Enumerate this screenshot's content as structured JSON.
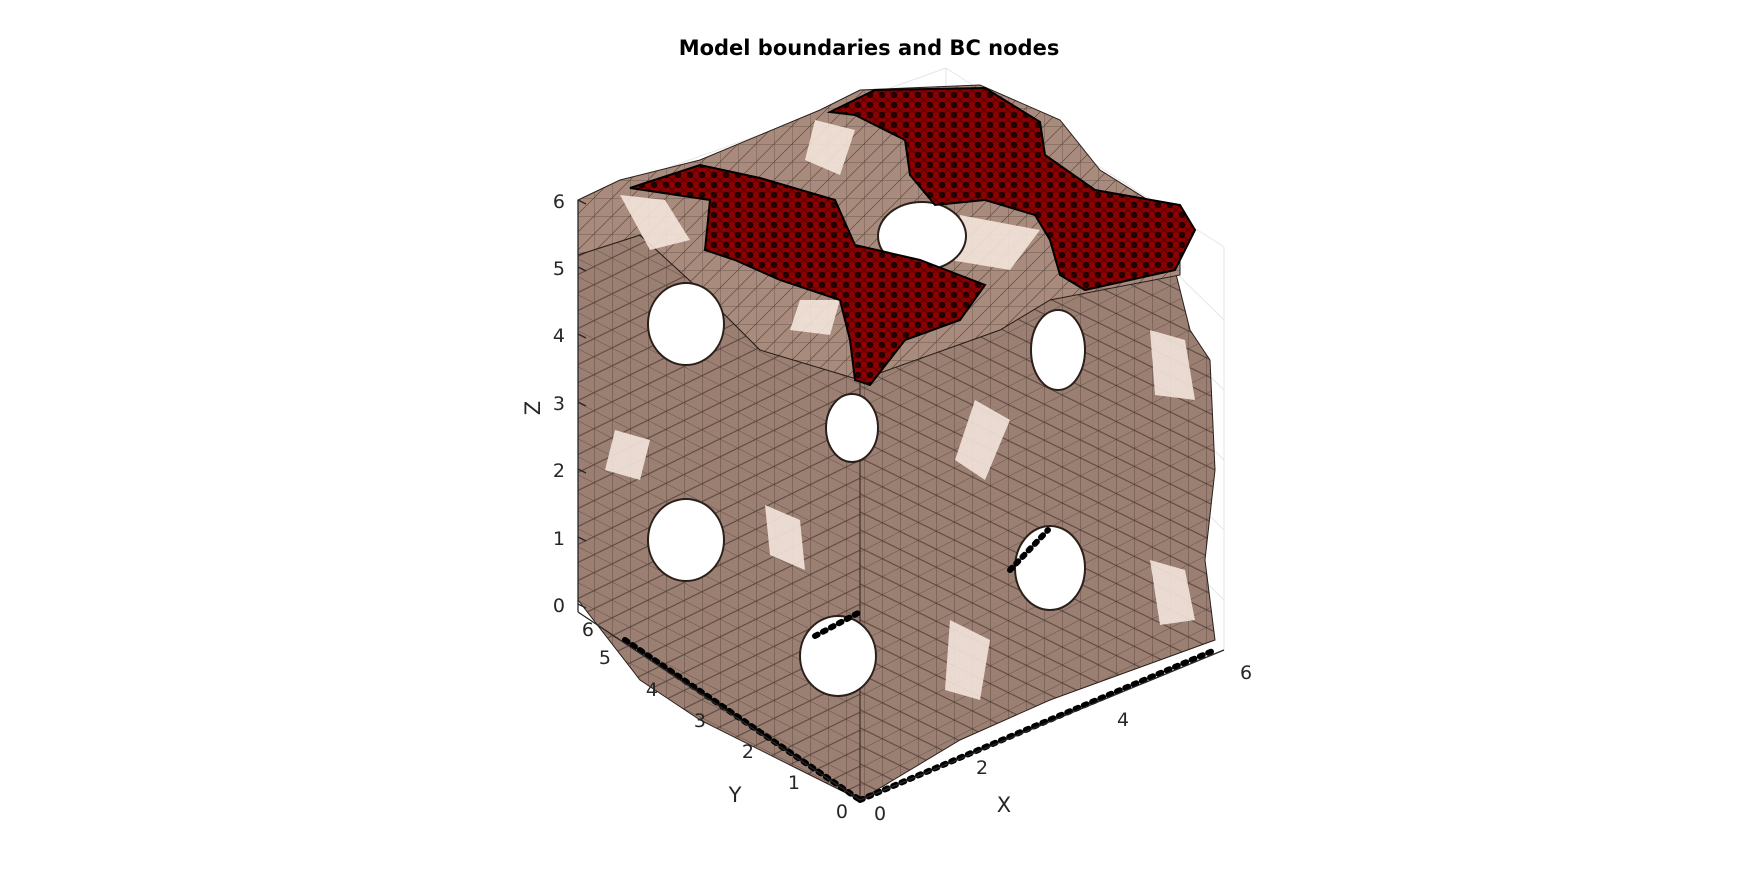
{
  "figure": {
    "title": "Model boundaries and BC nodes",
    "axes": {
      "x": {
        "label": "X",
        "ticks": [
          "0",
          "2",
          "4",
          "6"
        ]
      },
      "y": {
        "label": "Y",
        "ticks": [
          "0",
          "1",
          "2",
          "3",
          "4",
          "5",
          "6"
        ]
      },
      "z": {
        "label": "Z",
        "ticks": [
          "0",
          "1",
          "2",
          "3",
          "4",
          "5",
          "6"
        ]
      }
    },
    "colors": {
      "surface": "#9b7f72",
      "surface_light": "#d8bcae",
      "mesh": "#2b1f1a",
      "bc_face": "#8b0000",
      "bc_nodes": "#000000",
      "grid": "#e6e6e6",
      "axis": "#262626"
    }
  }
}
